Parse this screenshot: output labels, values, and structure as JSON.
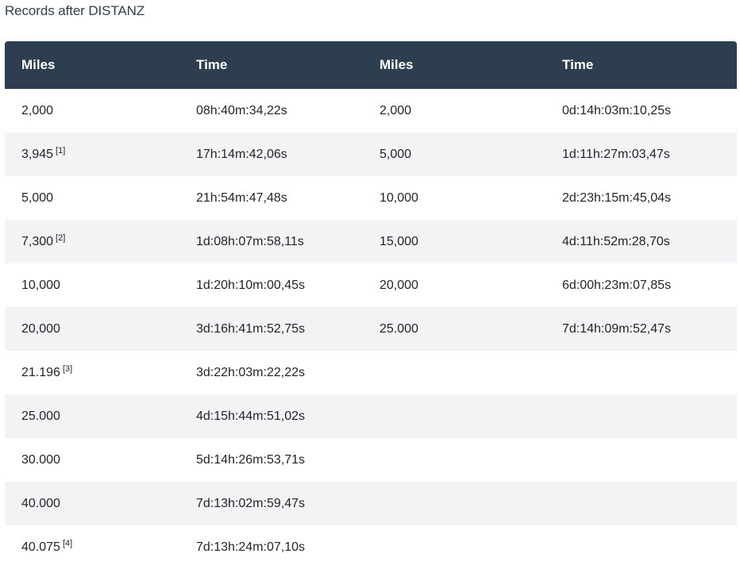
{
  "title": "Records after DISTANZ",
  "headers": [
    "Miles",
    "Time",
    "Miles",
    "Time"
  ],
  "rows": [
    {
      "miles_a": "2,000",
      "ref_a": "",
      "time_a": "08h:40m:34,22s",
      "miles_b": "2,000",
      "time_b": "0d:14h:03m:10,25s"
    },
    {
      "miles_a": "3,945",
      "ref_a": "[1]",
      "time_a": "17h:14m:42,06s",
      "miles_b": "5,000",
      "time_b": "1d:11h:27m:03,47s"
    },
    {
      "miles_a": "5,000",
      "ref_a": "",
      "time_a": "21h:54m:47,48s",
      "miles_b": "10,000",
      "time_b": "2d:23h:15m:45,04s"
    },
    {
      "miles_a": "7,300",
      "ref_a": "[2]",
      "time_a": "1d:08h:07m:58,11s",
      "miles_b": "15,000",
      "time_b": "4d:11h:52m:28,70s"
    },
    {
      "miles_a": "10,000",
      "ref_a": "",
      "time_a": "1d:20h:10m:00,45s",
      "miles_b": "20,000",
      "time_b": "6d:00h:23m:07,85s"
    },
    {
      "miles_a": "20,000",
      "ref_a": "",
      "time_a": "3d:16h:41m:52,75s",
      "miles_b": "25.000",
      "time_b": "7d:14h:09m:52,47s"
    },
    {
      "miles_a": "21.196",
      "ref_a": "[3]",
      "time_a": "3d:22h:03m:22,22s",
      "miles_b": "",
      "time_b": ""
    },
    {
      "miles_a": "25.000",
      "ref_a": "",
      "time_a": "4d:15h:44m:51,02s",
      "miles_b": "",
      "time_b": ""
    },
    {
      "miles_a": "30.000",
      "ref_a": "",
      "time_a": "5d:14h:26m:53,71s",
      "miles_b": "",
      "time_b": ""
    },
    {
      "miles_a": "40.000",
      "ref_a": "",
      "time_a": "7d:13h:02m:59,47s",
      "miles_b": "",
      "time_b": ""
    },
    {
      "miles_a": "40.075",
      "ref_a": "[4]",
      "time_a": "7d:13h:24m:07,10s",
      "miles_b": "",
      "time_b": ""
    }
  ],
  "colors": {
    "header_bg": "#2c3e50",
    "header_text": "#ffffff",
    "row_alt_bg": "#f2f3f5",
    "title_color": "#2c3e50"
  }
}
